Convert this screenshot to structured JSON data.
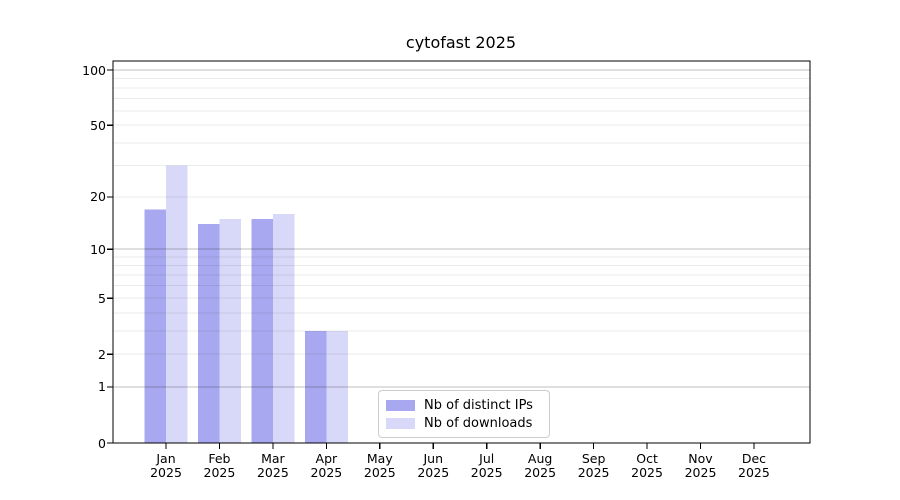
{
  "chart_data": {
    "type": "bar",
    "title": "cytofast 2025",
    "scale": "log1p",
    "categories": [
      "Jan",
      "Feb",
      "Mar",
      "Apr",
      "May",
      "Jun",
      "Jul",
      "Aug",
      "Sep",
      "Oct",
      "Nov",
      "Dec"
    ],
    "year_label": "2025",
    "series": [
      {
        "name": "Nb of distinct IPs",
        "color": "#a8a8f0",
        "values": [
          17,
          14,
          15,
          3,
          0,
          0,
          0,
          0,
          0,
          0,
          0,
          0
        ]
      },
      {
        "name": "Nb of downloads",
        "color": "#d8d8f8",
        "values": [
          30,
          15,
          16,
          3,
          0,
          0,
          0,
          0,
          0,
          0,
          0,
          0
        ]
      }
    ],
    "yticks": [
      0,
      1,
      2,
      5,
      10,
      20,
      50,
      100
    ],
    "major_gridlines": [
      1,
      10,
      100
    ],
    "minor_gridlines": [
      2,
      3,
      4,
      5,
      6,
      7,
      8,
      9,
      20,
      30,
      40,
      50,
      60,
      70,
      80,
      90
    ],
    "ylim": [
      0,
      112
    ],
    "legend_position": "lower center",
    "grid": true,
    "colors": {
      "spine": "#000000",
      "major_grid": "rgba(0,0,0,0.25)",
      "minor_grid": "rgba(0,0,0,0.08)",
      "legend_border": "#cccccc",
      "text": "#000000"
    }
  }
}
